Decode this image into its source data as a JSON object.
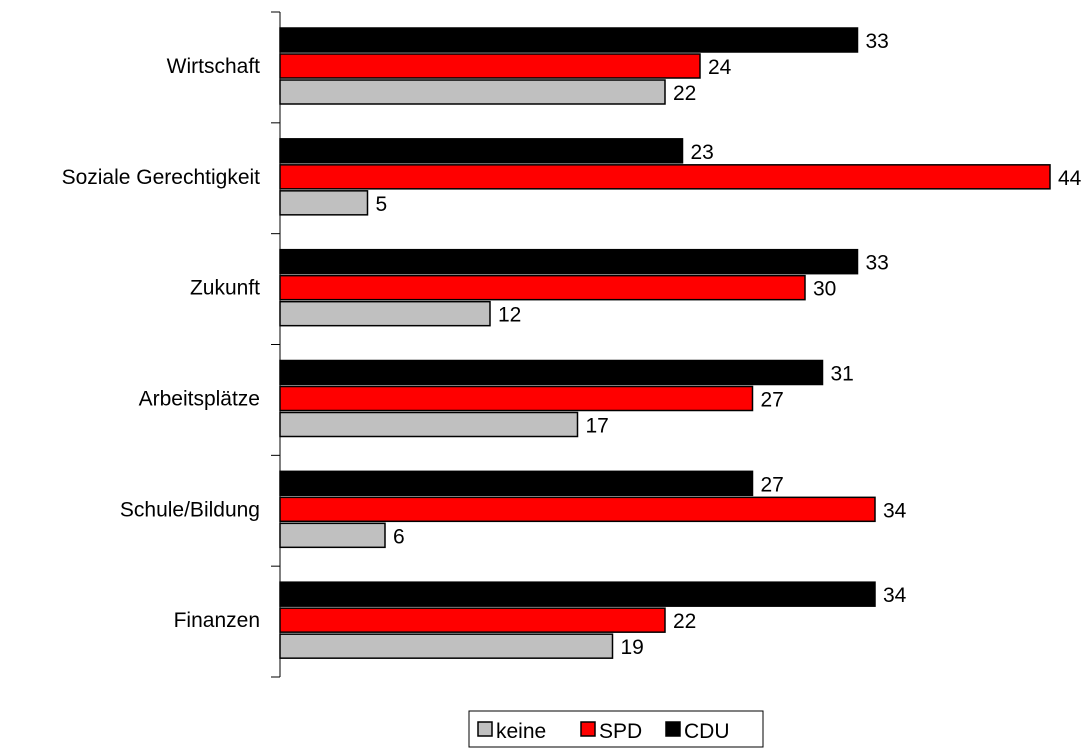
{
  "chart_data": {
    "type": "bar",
    "orientation": "horizontal",
    "categories": [
      "Wirtschaft",
      "Soziale Gerechtigkeit",
      "Zukunft",
      "Arbeitsplätze",
      "Schule/Bildung",
      "Finanzen"
    ],
    "series": [
      {
        "name": "CDU",
        "color": "#000000",
        "values": [
          33,
          23,
          33,
          31,
          27,
          34
        ]
      },
      {
        "name": "SPD",
        "color": "#ff0000",
        "values": [
          24,
          44,
          30,
          27,
          34,
          22
        ]
      },
      {
        "name": "keine",
        "color": "#c0c0c0",
        "values": [
          22,
          5,
          12,
          17,
          6,
          19
        ]
      }
    ],
    "legend": {
      "position": "bottom",
      "order": [
        "keine",
        "SPD",
        "CDU"
      ]
    },
    "grid": false,
    "xlim": [
      0,
      44
    ],
    "data_labels": true
  }
}
